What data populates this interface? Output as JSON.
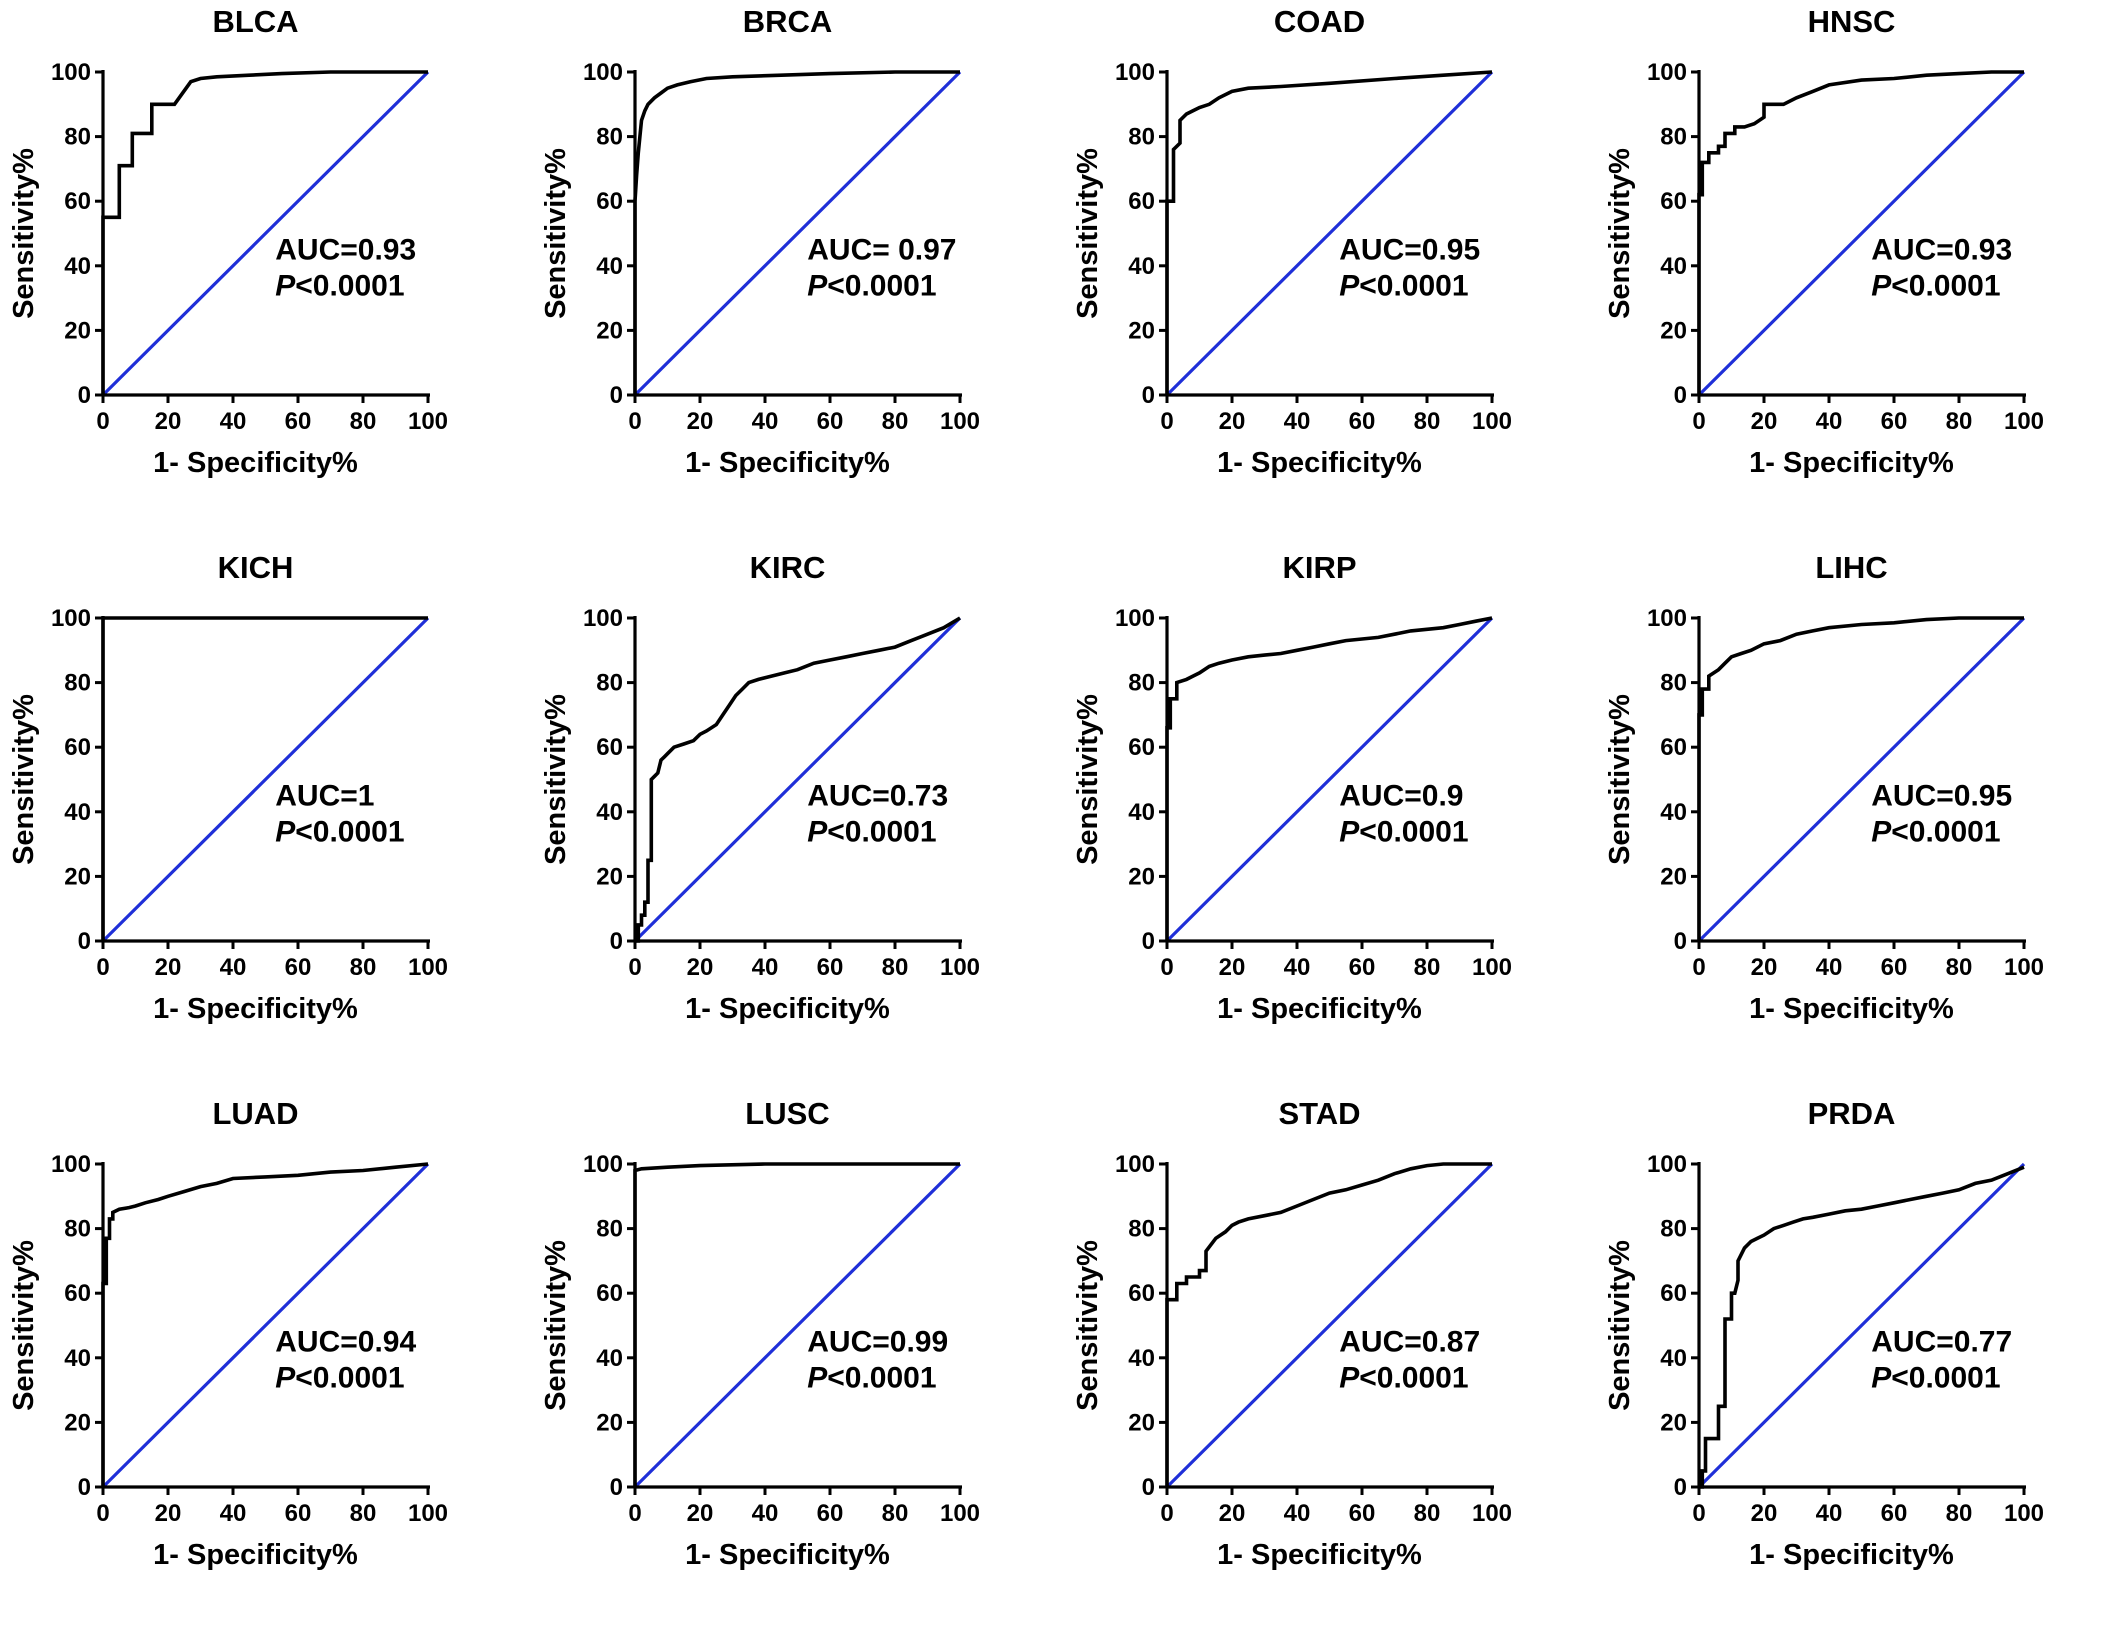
{
  "chart_data": [
    {
      "type": "line",
      "title": "BLCA",
      "xlabel": "1- Specificity%",
      "ylabel": "Sensitivity%",
      "xlim": [
        0,
        100
      ],
      "ylim": [
        0,
        100
      ],
      "x_ticks": [
        0,
        20,
        40,
        60,
        80,
        100
      ],
      "y_ticks": [
        0,
        20,
        40,
        60,
        80,
        100
      ],
      "annotation": {
        "auc": "AUC=0.93",
        "p_prefix": "P",
        "p_value": "<0.0001"
      },
      "reference_line_color": "#1f2fd8",
      "curve_color": "#000000",
      "series": [
        {
          "x": [
            0,
            0,
            0.5,
            0.5,
            5,
            5,
            9,
            9,
            15,
            15,
            22,
            22,
            27,
            30,
            35,
            45,
            55,
            70,
            100
          ],
          "y": [
            0,
            55,
            55,
            55,
            55,
            71,
            71,
            81,
            81,
            90,
            90,
            90,
            97,
            98,
            98.5,
            99,
            99.5,
            100,
            100
          ]
        }
      ]
    },
    {
      "type": "line",
      "title": "BRCA",
      "xlabel": "1- Specificity%",
      "ylabel": "Sensitivity%",
      "xlim": [
        0,
        100
      ],
      "ylim": [
        0,
        100
      ],
      "x_ticks": [
        0,
        20,
        40,
        60,
        80,
        100
      ],
      "y_ticks": [
        0,
        20,
        40,
        60,
        80,
        100
      ],
      "annotation": {
        "auc": "AUC= 0.97",
        "p_prefix": "P",
        "p_value": "<0.0001"
      },
      "reference_line_color": "#1f2fd8",
      "curve_color": "#000000",
      "series": [
        {
          "x": [
            0,
            0,
            0.5,
            1,
            1.5,
            2,
            3,
            4,
            6,
            8,
            10,
            13,
            17,
            22,
            30,
            45,
            60,
            80,
            100
          ],
          "y": [
            0,
            60,
            68,
            75,
            80,
            85,
            88,
            90,
            92,
            93.5,
            95,
            96,
            97,
            98,
            98.5,
            99,
            99.5,
            100,
            100
          ]
        }
      ]
    },
    {
      "type": "line",
      "title": "COAD",
      "xlabel": "1- Specificity%",
      "ylabel": "Sensitivity%",
      "xlim": [
        0,
        100
      ],
      "ylim": [
        0,
        100
      ],
      "x_ticks": [
        0,
        20,
        40,
        60,
        80,
        100
      ],
      "y_ticks": [
        0,
        20,
        40,
        60,
        80,
        100
      ],
      "annotation": {
        "auc": "AUC=0.95",
        "p_prefix": "P",
        "p_value": "<0.0001"
      },
      "reference_line_color": "#1f2fd8",
      "curve_color": "#000000",
      "series": [
        {
          "x": [
            0,
            0,
            2,
            2,
            4,
            4,
            6,
            8,
            10,
            13,
            16,
            20,
            25,
            35,
            50,
            70,
            85,
            100
          ],
          "y": [
            0,
            60,
            60,
            76,
            78,
            85,
            87,
            88,
            89,
            90,
            92,
            94,
            95,
            95.5,
            96.5,
            98,
            99,
            100
          ]
        }
      ]
    },
    {
      "type": "line",
      "title": "HNSC",
      "xlabel": "1- Specificity%",
      "ylabel": "Sensitivity%",
      "xlim": [
        0,
        100
      ],
      "ylim": [
        0,
        100
      ],
      "x_ticks": [
        0,
        20,
        40,
        60,
        80,
        100
      ],
      "y_ticks": [
        0,
        20,
        40,
        60,
        80,
        100
      ],
      "annotation": {
        "auc": "AUC=0.93",
        "p_prefix": "P",
        "p_value": "<0.0001"
      },
      "reference_line_color": "#1f2fd8",
      "curve_color": "#000000",
      "series": [
        {
          "x": [
            0,
            0,
            1,
            1,
            3,
            3,
            6,
            6,
            8,
            8,
            11,
            11,
            14,
            17,
            20,
            20,
            26,
            30,
            35,
            40,
            50,
            60,
            70,
            80,
            90,
            100
          ],
          "y": [
            0,
            62,
            62,
            72,
            72,
            75,
            75,
            77,
            77,
            81,
            81,
            83,
            83,
            84,
            86,
            90,
            90,
            92,
            94,
            96,
            97.5,
            98,
            99,
            99.5,
            100,
            100
          ]
        }
      ]
    },
    {
      "type": "line",
      "title": "KICH",
      "xlabel": "1- Specificity%",
      "ylabel": "Sensitivity%",
      "xlim": [
        0,
        100
      ],
      "ylim": [
        0,
        100
      ],
      "x_ticks": [
        0,
        20,
        40,
        60,
        80,
        100
      ],
      "y_ticks": [
        0,
        20,
        40,
        60,
        80,
        100
      ],
      "annotation": {
        "auc": "AUC=1",
        "p_prefix": "P",
        "p_value": "<0.0001"
      },
      "reference_line_color": "#1f2fd8",
      "curve_color": "#000000",
      "series": [
        {
          "x": [
            0,
            0,
            100
          ],
          "y": [
            0,
            100,
            100
          ]
        }
      ]
    },
    {
      "type": "line",
      "title": "KIRC",
      "xlabel": "1- Specificity%",
      "ylabel": "Sensitivity%",
      "xlim": [
        0,
        100
      ],
      "ylim": [
        0,
        100
      ],
      "x_ticks": [
        0,
        20,
        40,
        60,
        80,
        100
      ],
      "y_ticks": [
        0,
        20,
        40,
        60,
        80,
        100
      ],
      "annotation": {
        "auc": "AUC=0.73",
        "p_prefix": "P",
        "p_value": "<0.0001"
      },
      "reference_line_color": "#1f2fd8",
      "curve_color": "#000000",
      "series": [
        {
          "x": [
            0,
            1,
            1,
            2,
            2,
            3,
            3,
            4,
            4,
            5,
            5,
            6,
            7,
            8,
            9,
            10,
            12,
            15,
            18,
            20,
            22,
            25,
            27,
            29,
            31,
            33,
            35,
            38,
            42,
            46,
            50,
            55,
            60,
            65,
            70,
            75,
            80,
            85,
            90,
            95,
            100
          ],
          "y": [
            0,
            0,
            5,
            5,
            8,
            8,
            12,
            12,
            25,
            25,
            50,
            51,
            52,
            56,
            57,
            58,
            60,
            61,
            62,
            64,
            65,
            67,
            70,
            73,
            76,
            78,
            80,
            81,
            82,
            83,
            84,
            86,
            87,
            88,
            89,
            90,
            91,
            93,
            95,
            97,
            100
          ]
        }
      ]
    },
    {
      "type": "line",
      "title": "KIRP",
      "xlabel": "1- Specificity%",
      "ylabel": "Sensitivity%",
      "xlim": [
        0,
        100
      ],
      "ylim": [
        0,
        100
      ],
      "x_ticks": [
        0,
        20,
        40,
        60,
        80,
        100
      ],
      "y_ticks": [
        0,
        20,
        40,
        60,
        80,
        100
      ],
      "annotation": {
        "auc": "AUC=0.9",
        "p_prefix": "P",
        "p_value": "<0.0001"
      },
      "reference_line_color": "#1f2fd8",
      "curve_color": "#000000",
      "series": [
        {
          "x": [
            0,
            0,
            1,
            1,
            3,
            3,
            6,
            8,
            10,
            13,
            16,
            20,
            25,
            30,
            35,
            40,
            45,
            50,
            55,
            60,
            65,
            70,
            75,
            80,
            85,
            90,
            95,
            100
          ],
          "y": [
            0,
            66,
            66,
            75,
            75,
            80,
            81,
            82,
            83,
            85,
            86,
            87,
            88,
            88.5,
            89,
            90,
            91,
            92,
            93,
            93.5,
            94,
            95,
            96,
            96.5,
            97,
            98,
            99,
            100
          ]
        }
      ]
    },
    {
      "type": "line",
      "title": "LIHC",
      "xlabel": "1- Specificity%",
      "ylabel": "Sensitivity%",
      "xlim": [
        0,
        100
      ],
      "ylim": [
        0,
        100
      ],
      "x_ticks": [
        0,
        20,
        40,
        60,
        80,
        100
      ],
      "y_ticks": [
        0,
        20,
        40,
        60,
        80,
        100
      ],
      "annotation": {
        "auc": "AUC=0.95",
        "p_prefix": "P",
        "p_value": "<0.0001"
      },
      "reference_line_color": "#1f2fd8",
      "curve_color": "#000000",
      "series": [
        {
          "x": [
            0,
            0,
            1,
            1,
            3,
            3,
            6,
            8,
            10,
            13,
            16,
            20,
            25,
            30,
            35,
            40,
            50,
            60,
            70,
            80,
            100
          ],
          "y": [
            0,
            70,
            70,
            78,
            78,
            82,
            84,
            86,
            88,
            89,
            90,
            92,
            93,
            95,
            96,
            97,
            98,
            98.5,
            99.5,
            100,
            100
          ]
        }
      ]
    },
    {
      "type": "line",
      "title": "LUAD",
      "xlabel": "1- Specificity%",
      "ylabel": "Sensitivity%",
      "xlim": [
        0,
        100
      ],
      "ylim": [
        0,
        100
      ],
      "x_ticks": [
        0,
        20,
        40,
        60,
        80,
        100
      ],
      "y_ticks": [
        0,
        20,
        40,
        60,
        80,
        100
      ],
      "annotation": {
        "auc": "AUC=0.94",
        "p_prefix": "P",
        "p_value": "<0.0001"
      },
      "reference_line_color": "#1f2fd8",
      "curve_color": "#000000",
      "series": [
        {
          "x": [
            0,
            0,
            1,
            1,
            2,
            2,
            3,
            3,
            5,
            8,
            10,
            13,
            17,
            20,
            25,
            30,
            35,
            40,
            50,
            60,
            70,
            80,
            90,
            100
          ],
          "y": [
            0,
            63,
            63,
            77,
            77,
            83,
            83,
            85,
            86,
            86.5,
            87,
            88,
            89,
            90,
            91.5,
            93,
            94,
            95.5,
            96,
            96.5,
            97.5,
            98,
            99,
            100
          ]
        }
      ]
    },
    {
      "type": "line",
      "title": "LUSC",
      "xlabel": "1- Specificity%",
      "ylabel": "Sensitivity%",
      "xlim": [
        0,
        100
      ],
      "ylim": [
        0,
        100
      ],
      "x_ticks": [
        0,
        20,
        40,
        60,
        80,
        100
      ],
      "y_ticks": [
        0,
        20,
        40,
        60,
        80,
        100
      ],
      "annotation": {
        "auc": "AUC=0.99",
        "p_prefix": "P",
        "p_value": "<0.0001"
      },
      "reference_line_color": "#1f2fd8",
      "curve_color": "#000000",
      "series": [
        {
          "x": [
            0,
            0,
            2,
            10,
            20,
            40,
            60,
            100
          ],
          "y": [
            0,
            98,
            98.5,
            99,
            99.5,
            100,
            100,
            100
          ]
        }
      ]
    },
    {
      "type": "line",
      "title": "STAD",
      "xlabel": "1- Specificity%",
      "ylabel": "Sensitivity%",
      "xlim": [
        0,
        100
      ],
      "ylim": [
        0,
        100
      ],
      "x_ticks": [
        0,
        20,
        40,
        60,
        80,
        100
      ],
      "y_ticks": [
        0,
        20,
        40,
        60,
        80,
        100
      ],
      "annotation": {
        "auc": "AUC=0.87",
        "p_prefix": "P",
        "p_value": "<0.0001"
      },
      "reference_line_color": "#1f2fd8",
      "curve_color": "#000000",
      "series": [
        {
          "x": [
            0,
            0,
            3,
            3,
            6,
            6,
            10,
            10,
            12,
            12,
            15,
            18,
            20,
            22,
            25,
            30,
            35,
            40,
            45,
            50,
            55,
            60,
            65,
            70,
            75,
            80,
            85,
            100
          ],
          "y": [
            0,
            58,
            58,
            63,
            63,
            65,
            65,
            67,
            67,
            73,
            77,
            79,
            81,
            82,
            83,
            84,
            85,
            87,
            89,
            91,
            92,
            93.5,
            95,
            97,
            98.5,
            99.5,
            100,
            100
          ]
        }
      ]
    },
    {
      "type": "line",
      "title": "PRDA",
      "xlabel": "1- Specificity%",
      "ylabel": "Sensitivity%",
      "xlim": [
        0,
        100
      ],
      "ylim": [
        0,
        100
      ],
      "x_ticks": [
        0,
        20,
        40,
        60,
        80,
        100
      ],
      "y_ticks": [
        0,
        20,
        40,
        60,
        80,
        100
      ],
      "annotation": {
        "auc": "AUC=0.77",
        "p_prefix": "P",
        "p_value": "<0.0001"
      },
      "reference_line_color": "#1f2fd8",
      "curve_color": "#000000",
      "series": [
        {
          "x": [
            0,
            1,
            1,
            2,
            2,
            4,
            4,
            6,
            6,
            8,
            8,
            10,
            10,
            11,
            12,
            12,
            14,
            16,
            18,
            20,
            23,
            26,
            29,
            32,
            35,
            40,
            45,
            50,
            55,
            60,
            65,
            70,
            75,
            80,
            85,
            90,
            95,
            100
          ],
          "y": [
            0,
            0,
            5,
            5,
            15,
            15,
            15,
            15,
            25,
            25,
            52,
            52,
            60,
            60,
            64,
            70,
            74,
            76,
            77,
            78,
            80,
            81,
            82,
            83,
            83.5,
            84.5,
            85.5,
            86,
            87,
            88,
            89,
            90,
            91,
            92,
            94,
            95,
            97,
            99
          ]
        }
      ]
    }
  ]
}
